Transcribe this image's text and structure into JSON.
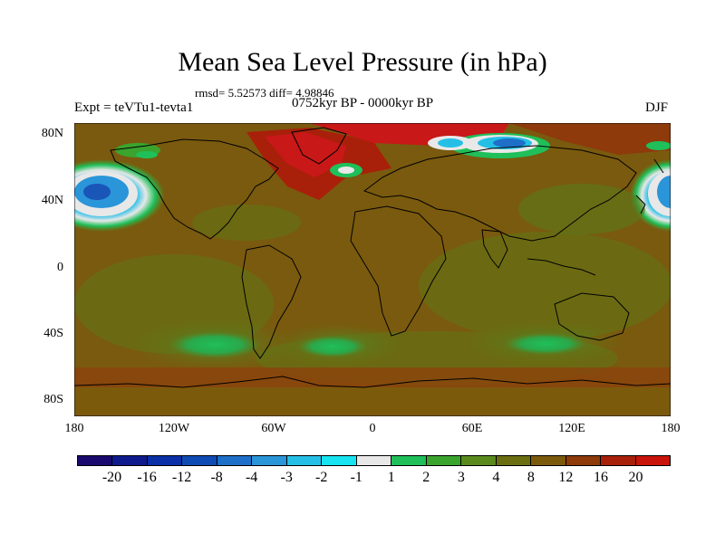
{
  "title": "Mean Sea Level Pressure (in hPa)",
  "stats": "rmsd= 5.52573 diff= 4.98846",
  "period": "0752kyr BP - 0000kyr BP",
  "experiment": "Expt = teVTu1-tevta1",
  "season": "DJF",
  "axes": {
    "y_labels": [
      "80N",
      "40N",
      "0",
      "40S",
      "80S"
    ],
    "x_labels": [
      "180",
      "120W",
      "60W",
      "0",
      "60E",
      "120E",
      "180"
    ]
  },
  "colorbar": {
    "labels": [
      "-20",
      "-16",
      "-12",
      "-8",
      "-4",
      "-3",
      "-2",
      "-1",
      "1",
      "2",
      "3",
      "4",
      "8",
      "12",
      "16",
      "20"
    ],
    "colors": [
      "#1a0a6e",
      "#0f1a8c",
      "#0a2fa6",
      "#0f4bb4",
      "#1e6fc8",
      "#2a95d8",
      "#25bfe6",
      "#17e4f0",
      "#e8e8e8",
      "#1fbf5a",
      "#3aa42e",
      "#5a8a1e",
      "#6b6e10",
      "#7c5a0c",
      "#8e3a0a",
      "#a8200a",
      "#c8140a"
    ]
  },
  "palette": {
    "background_field": "#7a5a0e",
    "ocean_green": "#38a63a",
    "strong_positive": "#c81818",
    "negative": "#1e6fc8",
    "land_line": "#000000"
  }
}
